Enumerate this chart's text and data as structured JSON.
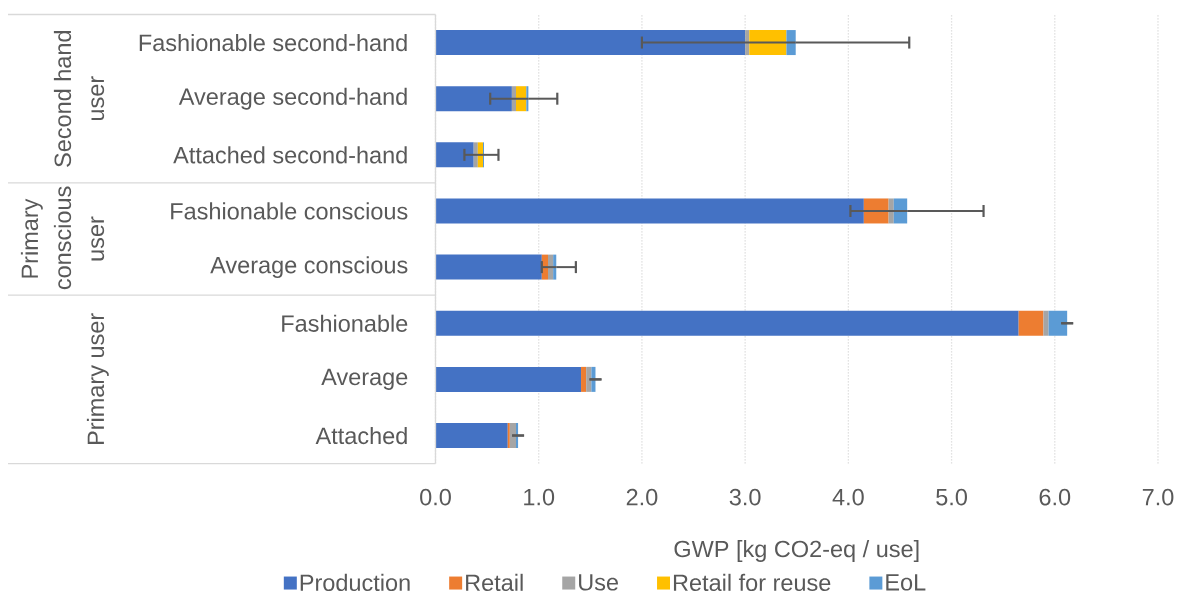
{
  "chart_data": {
    "type": "bar",
    "orientation": "horizontal",
    "stacked": true,
    "categories": [
      "Fashionable second-hand",
      "Average second-hand",
      "Attached second-hand",
      "Fashionable conscious",
      "Average conscious",
      "Fashionable",
      "Average",
      "Attached"
    ],
    "series": [
      {
        "name": "Production",
        "color": "#4472c4",
        "values": [
          3.0,
          0.74,
          0.37,
          4.15,
          1.03,
          5.65,
          1.41,
          0.7
        ]
      },
      {
        "name": "Retail",
        "color": "#ed7d31",
        "values": [
          0,
          0,
          0,
          0.24,
          0.06,
          0.24,
          0.05,
          0.02
        ]
      },
      {
        "name": "Use",
        "color": "#a5a5a5",
        "values": [
          0.04,
          0.04,
          0.04,
          0.05,
          0.05,
          0.05,
          0.05,
          0.06
        ]
      },
      {
        "name": "Retail for reuse",
        "color": "#ffc000",
        "values": [
          0.36,
          0.1,
          0.05,
          0,
          0,
          0,
          0,
          0
        ]
      },
      {
        "name": "EoL",
        "color": "#5b9bd5",
        "values": [
          0.09,
          0.02,
          0.01,
          0.13,
          0.03,
          0.18,
          0.04,
          0.02
        ],
        "errors": [
          [
            2.0,
            4.59
          ],
          [
            0.53,
            1.18
          ],
          [
            0.28,
            0.61
          ],
          [
            4.02,
            5.31
          ],
          [
            1.03,
            1.36
          ],
          0,
          0,
          0
        ]
      }
    ],
    "xlabel": "GWP [kg CO2-eq / use]",
    "xlim": [
      0,
      7
    ],
    "xticks": [
      {
        "value": 0,
        "label": "0.0"
      },
      {
        "value": 1,
        "label": "1.0"
      },
      {
        "value": 2,
        "label": "2.0"
      },
      {
        "value": 3,
        "label": "3.0"
      },
      {
        "value": 4,
        "label": "4.0"
      },
      {
        "value": 5,
        "label": "5.0"
      },
      {
        "value": 6,
        "label": "6.0"
      },
      {
        "value": 7,
        "label": "7.0"
      }
    ],
    "grid": "x",
    "legend": "bottom",
    "annotations": [
      "Second hand user",
      "Primary conscious user",
      "Primary user"
    ]
  }
}
